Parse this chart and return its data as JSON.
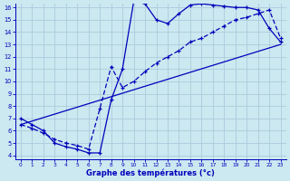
{
  "xlabel": "Graphe des températures (°c)",
  "bg_color": "#cce8f0",
  "line_color": "#0000bb",
  "grid_color": "#aaccdd",
  "xlim": [
    0,
    23
  ],
  "ylim": [
    4,
    16
  ],
  "xticks": [
    0,
    1,
    2,
    3,
    4,
    5,
    6,
    7,
    8,
    9,
    10,
    11,
    12,
    13,
    14,
    15,
    16,
    17,
    18,
    19,
    20,
    21,
    22,
    23
  ],
  "yticks": [
    4,
    5,
    6,
    7,
    8,
    9,
    10,
    11,
    12,
    13,
    14,
    15,
    16
  ],
  "curve1_x": [
    0,
    1,
    2,
    3,
    4,
    5,
    6,
    7,
    8,
    9,
    10,
    11,
    12,
    13,
    14,
    15,
    16,
    17,
    18,
    19,
    20,
    21,
    22,
    23
  ],
  "curve1_y": [
    7.0,
    6.5,
    6.0,
    5.0,
    4.7,
    4.5,
    4.2,
    4.2,
    8.5,
    11.0,
    16.5,
    16.3,
    15.0,
    14.7,
    15.5,
    16.2,
    16.3,
    16.2,
    16.1,
    16.0,
    16.0,
    15.8,
    14.3,
    13.2
  ],
  "curve2_x": [
    0,
    1,
    2,
    3,
    4,
    5,
    6,
    7,
    8,
    9,
    10,
    11,
    12,
    13,
    14,
    15,
    16,
    17,
    18,
    19,
    20,
    21,
    22,
    23
  ],
  "curve2_y": [
    6.5,
    6.2,
    5.8,
    5.3,
    5.0,
    4.8,
    4.5,
    7.8,
    11.2,
    9.5,
    10.0,
    10.8,
    11.5,
    12.0,
    12.5,
    13.2,
    13.5,
    14.0,
    14.5,
    15.0,
    15.2,
    15.5,
    15.8,
    13.5
  ],
  "line3_x": [
    0,
    23
  ],
  "line3_y": [
    6.5,
    13.0
  ]
}
